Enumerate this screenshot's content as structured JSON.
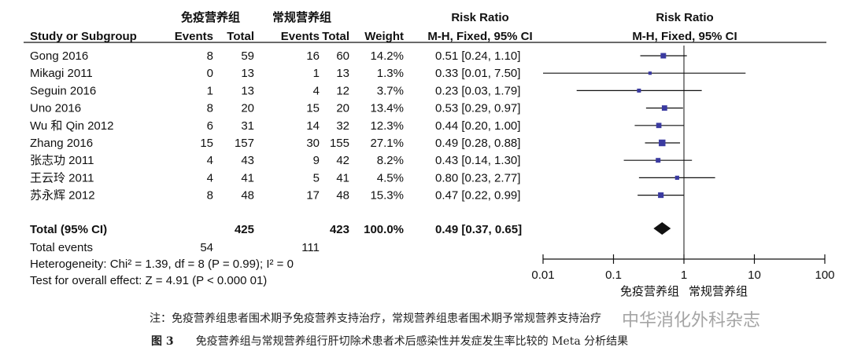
{
  "chart_data": {
    "type": "forest",
    "group_labels": {
      "experimental": "免疫营养组",
      "control": "常规营养组"
    },
    "header": {
      "study": "Study or Subgroup",
      "events": "Events",
      "total": "Total",
      "weight": "Weight",
      "effect_title": "Risk Ratio",
      "effect_method": "M-H, Fixed, 95% CI",
      "plot_title": "Risk Ratio",
      "plot_method": "M-H, Fixed, 95% CI"
    },
    "studies": [
      {
        "name": "Gong 2016",
        "exp_events": "8",
        "exp_total": "59",
        "ctl_events": "16",
        "ctl_total": "60",
        "weight": "14.2%",
        "ci_text": "0.51 [0.24, 1.10]",
        "rr": 0.51,
        "low": 0.24,
        "high": 1.1,
        "w": 14.2
      },
      {
        "name": "Mikagi 2011",
        "exp_events": "0",
        "exp_total": "13",
        "ctl_events": "1",
        "ctl_total": "13",
        "weight": "1.3%",
        "ci_text": "0.33 [0.01, 7.50]",
        "rr": 0.33,
        "low": 0.01,
        "high": 7.5,
        "w": 1.3
      },
      {
        "name": "Seguin 2016",
        "exp_events": "1",
        "exp_total": "13",
        "ctl_events": "4",
        "ctl_total": "12",
        "weight": "3.7%",
        "ci_text": "0.23 [0.03, 1.79]",
        "rr": 0.23,
        "low": 0.03,
        "high": 1.79,
        "w": 3.7
      },
      {
        "name": "Uno 2016",
        "exp_events": "8",
        "exp_total": "20",
        "ctl_events": "15",
        "ctl_total": "20",
        "weight": "13.4%",
        "ci_text": "0.53 [0.29, 0.97]",
        "rr": 0.53,
        "low": 0.29,
        "high": 0.97,
        "w": 13.4
      },
      {
        "name": "Wu 和 Qin 2012",
        "exp_events": "6",
        "exp_total": "31",
        "ctl_events": "14",
        "ctl_total": "32",
        "weight": "12.3%",
        "ci_text": "0.44 [0.20, 1.00]",
        "rr": 0.44,
        "low": 0.2,
        "high": 1.0,
        "w": 12.3
      },
      {
        "name": "Zhang 2016",
        "exp_events": "15",
        "exp_total": "157",
        "ctl_events": "30",
        "ctl_total": "155",
        "weight": "27.1%",
        "ci_text": "0.49 [0.28, 0.88]",
        "rr": 0.49,
        "low": 0.28,
        "high": 0.88,
        "w": 27.1
      },
      {
        "name": "张志功 2011",
        "exp_events": "4",
        "exp_total": "43",
        "ctl_events": "9",
        "ctl_total": "42",
        "weight": "8.2%",
        "ci_text": "0.43 [0.14, 1.30]",
        "rr": 0.43,
        "low": 0.14,
        "high": 1.3,
        "w": 8.2
      },
      {
        "name": "王云玲 2011",
        "exp_events": "4",
        "exp_total": "41",
        "ctl_events": "5",
        "ctl_total": "41",
        "weight": "4.5%",
        "ci_text": "0.80 [0.23, 2.77]",
        "rr": 0.8,
        "low": 0.23,
        "high": 2.77,
        "w": 4.5
      },
      {
        "name": "苏永辉 2012",
        "exp_events": "8",
        "exp_total": "48",
        "ctl_events": "17",
        "ctl_total": "48",
        "weight": "15.3%",
        "ci_text": "0.47 [0.22, 0.99]",
        "rr": 0.47,
        "low": 0.22,
        "high": 0.99,
        "w": 15.3
      }
    ],
    "total": {
      "name": "Total (95% CI)",
      "exp_total": "425",
      "ctl_total": "423",
      "weight": "100.0%",
      "ci_text": "0.49 [0.37, 0.65]",
      "rr": 0.49,
      "low": 0.37,
      "high": 0.65
    },
    "total_events": {
      "label": "Total events",
      "exp": "54",
      "ctl": "111"
    },
    "heterogeneity": "Heterogeneity: Chi² = 1.39, df = 8 (P = 0.99); I² = 0",
    "overall_effect": "Test for overall effect: Z = 4.91 (P < 0.000 01)",
    "x_axis": {
      "scale": "log",
      "range": [
        0.01,
        100
      ],
      "ticks": [
        0.01,
        0.1,
        1,
        10,
        100
      ],
      "tick_labels": [
        "0.01",
        "0.1",
        "1",
        "10",
        "100"
      ]
    },
    "axis_group_left": "免疫营养组",
    "axis_group_right": "常规营养组",
    "marker_color": "#3a3aa0"
  },
  "note": "注：免疫营养组患者围术期予免疫营养支持治疗，常规营养组患者围术期予常规营养支持治疗",
  "caption": {
    "fig": "图 3",
    "text": "免疫营养组与常规营养组行肝切除术患者术后感染性并发症发生率比较的 Meta 分析结果"
  },
  "watermark": "中华消化外科杂志"
}
